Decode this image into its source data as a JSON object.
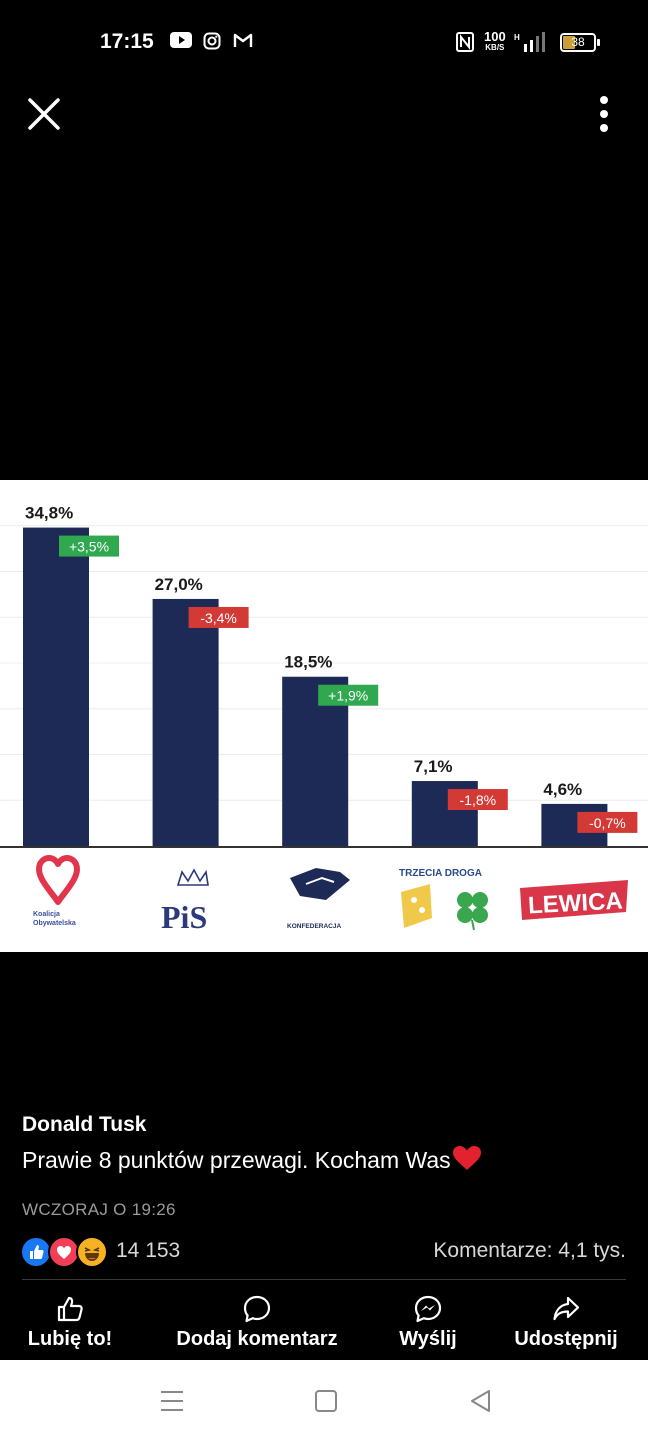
{
  "status_bar": {
    "time": "17:15",
    "speed_value": "100",
    "speed_unit": "KB/S",
    "battery_level": "38",
    "icons": [
      "youtube-icon",
      "instagram-icon",
      "gmail-icon",
      "nfc-icon",
      "signal-icon",
      "battery-icon"
    ]
  },
  "top_bar": {
    "icons": [
      "close-icon",
      "more-options-icon"
    ]
  },
  "chart_data": {
    "type": "bar",
    "categories": [
      "Koalicja Obywatelska",
      "PiS",
      "Konfederacja",
      "Trzecia Droga",
      "Lewica"
    ],
    "values": [
      34.8,
      27.0,
      18.5,
      7.1,
      4.6
    ],
    "value_labels": [
      "34,8%",
      "27,0%",
      "18,5%",
      "7,1%",
      "4,6%"
    ],
    "changes": [
      3.5,
      -3.4,
      1.9,
      -1.8,
      -0.7
    ],
    "change_labels": [
      "+3,5%",
      "-3,4%",
      "+1,9%",
      "-1,8%",
      "-0,7%"
    ],
    "ylim": [
      0,
      40
    ],
    "grid": true,
    "colors": {
      "bar": "#1c2a55",
      "positive": "#2fa84f",
      "negative": "#d33a36"
    },
    "logos": {
      "ko_line1": "Koalicja",
      "ko_line2": "Obywatelska",
      "pis": "PiS",
      "konfederacja": "KONFEDERACJA",
      "trzecia_droga": "TRZECIA DROGA",
      "lewica": "LEWICA"
    }
  },
  "post": {
    "author": "Donald Tusk",
    "text": "Prawie 8 punktów przewagi. Kocham Was",
    "timestamp": "WCZORAJ O 19:26",
    "reaction_icons": [
      "like-icon",
      "love-icon",
      "haha-icon"
    ],
    "reaction_count": "14 153",
    "comments": "Komentarze: 4,1 tys."
  },
  "actions": {
    "like": "Lubię to!",
    "comment": "Dodaj komentarz",
    "send": "Wyślij",
    "share": "Udostępnij"
  },
  "nav_bar": {
    "icons": [
      "menu-icon",
      "home-icon",
      "back-icon"
    ]
  }
}
